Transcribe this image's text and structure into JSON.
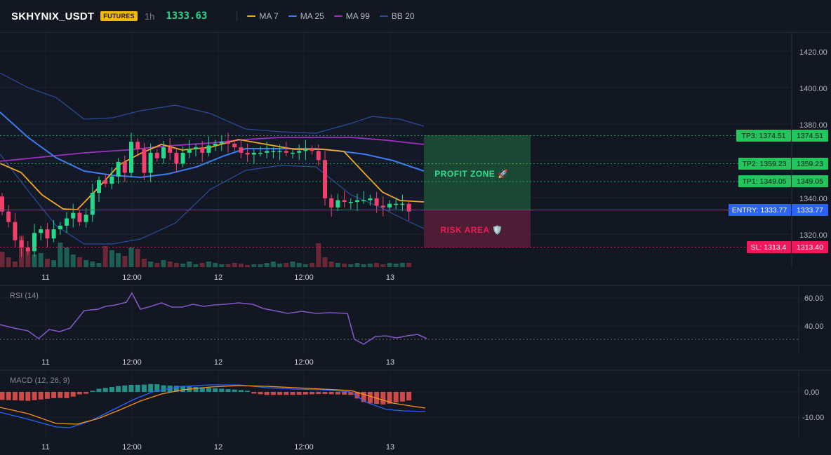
{
  "header": {
    "symbol": "SKHYNIX_USDT",
    "badge": "FUTURES",
    "timeframe": "1h",
    "price": "1333.63",
    "price_color": "#26d98a",
    "legend": [
      {
        "label": "MA 7",
        "color": "#f5a623"
      },
      {
        "label": "MA 25",
        "color": "#3d7cf0"
      },
      {
        "label": "MA 99",
        "color": "#a02fc4"
      },
      {
        "label": "BB 20",
        "color": "#2a4c9a"
      }
    ]
  },
  "main_axis": {
    "ticks": [
      "1420.00",
      "1400.00",
      "1380.00",
      "1340.00",
      "1320.00"
    ]
  },
  "time_axis": {
    "labels": [
      "11",
      "12:00",
      "12",
      "12:00",
      "13"
    ]
  },
  "levels": [
    {
      "label": "TP3: 1374.51",
      "value": "1374.51",
      "color": "#22c55e"
    },
    {
      "label": "TP2: 1359.23",
      "value": "1359.23",
      "color": "#22c55e"
    },
    {
      "label": "TP1: 1349.05",
      "value": "1349.05",
      "color": "#22c55e"
    },
    {
      "label": "ENTRY: 1333.77",
      "value": "1333.77",
      "color": "#2962ff"
    },
    {
      "label": "SL: 1313.4",
      "value": "1313.40",
      "color": "#f0185b"
    }
  ],
  "zones": {
    "profit": "PROFIT ZONE 🚀",
    "risk": "RISK AREA 🛡️"
  },
  "rsi": {
    "title": "RSI (14)",
    "ticks": [
      "60.00",
      "40.00"
    ],
    "line_color": "#7e57c2"
  },
  "macd": {
    "title": "MACD (12, 26, 9)",
    "ticks": [
      "0.00",
      "-10.00"
    ],
    "macd_color": "#2962ff",
    "signal_color": "#f7931a"
  }
}
